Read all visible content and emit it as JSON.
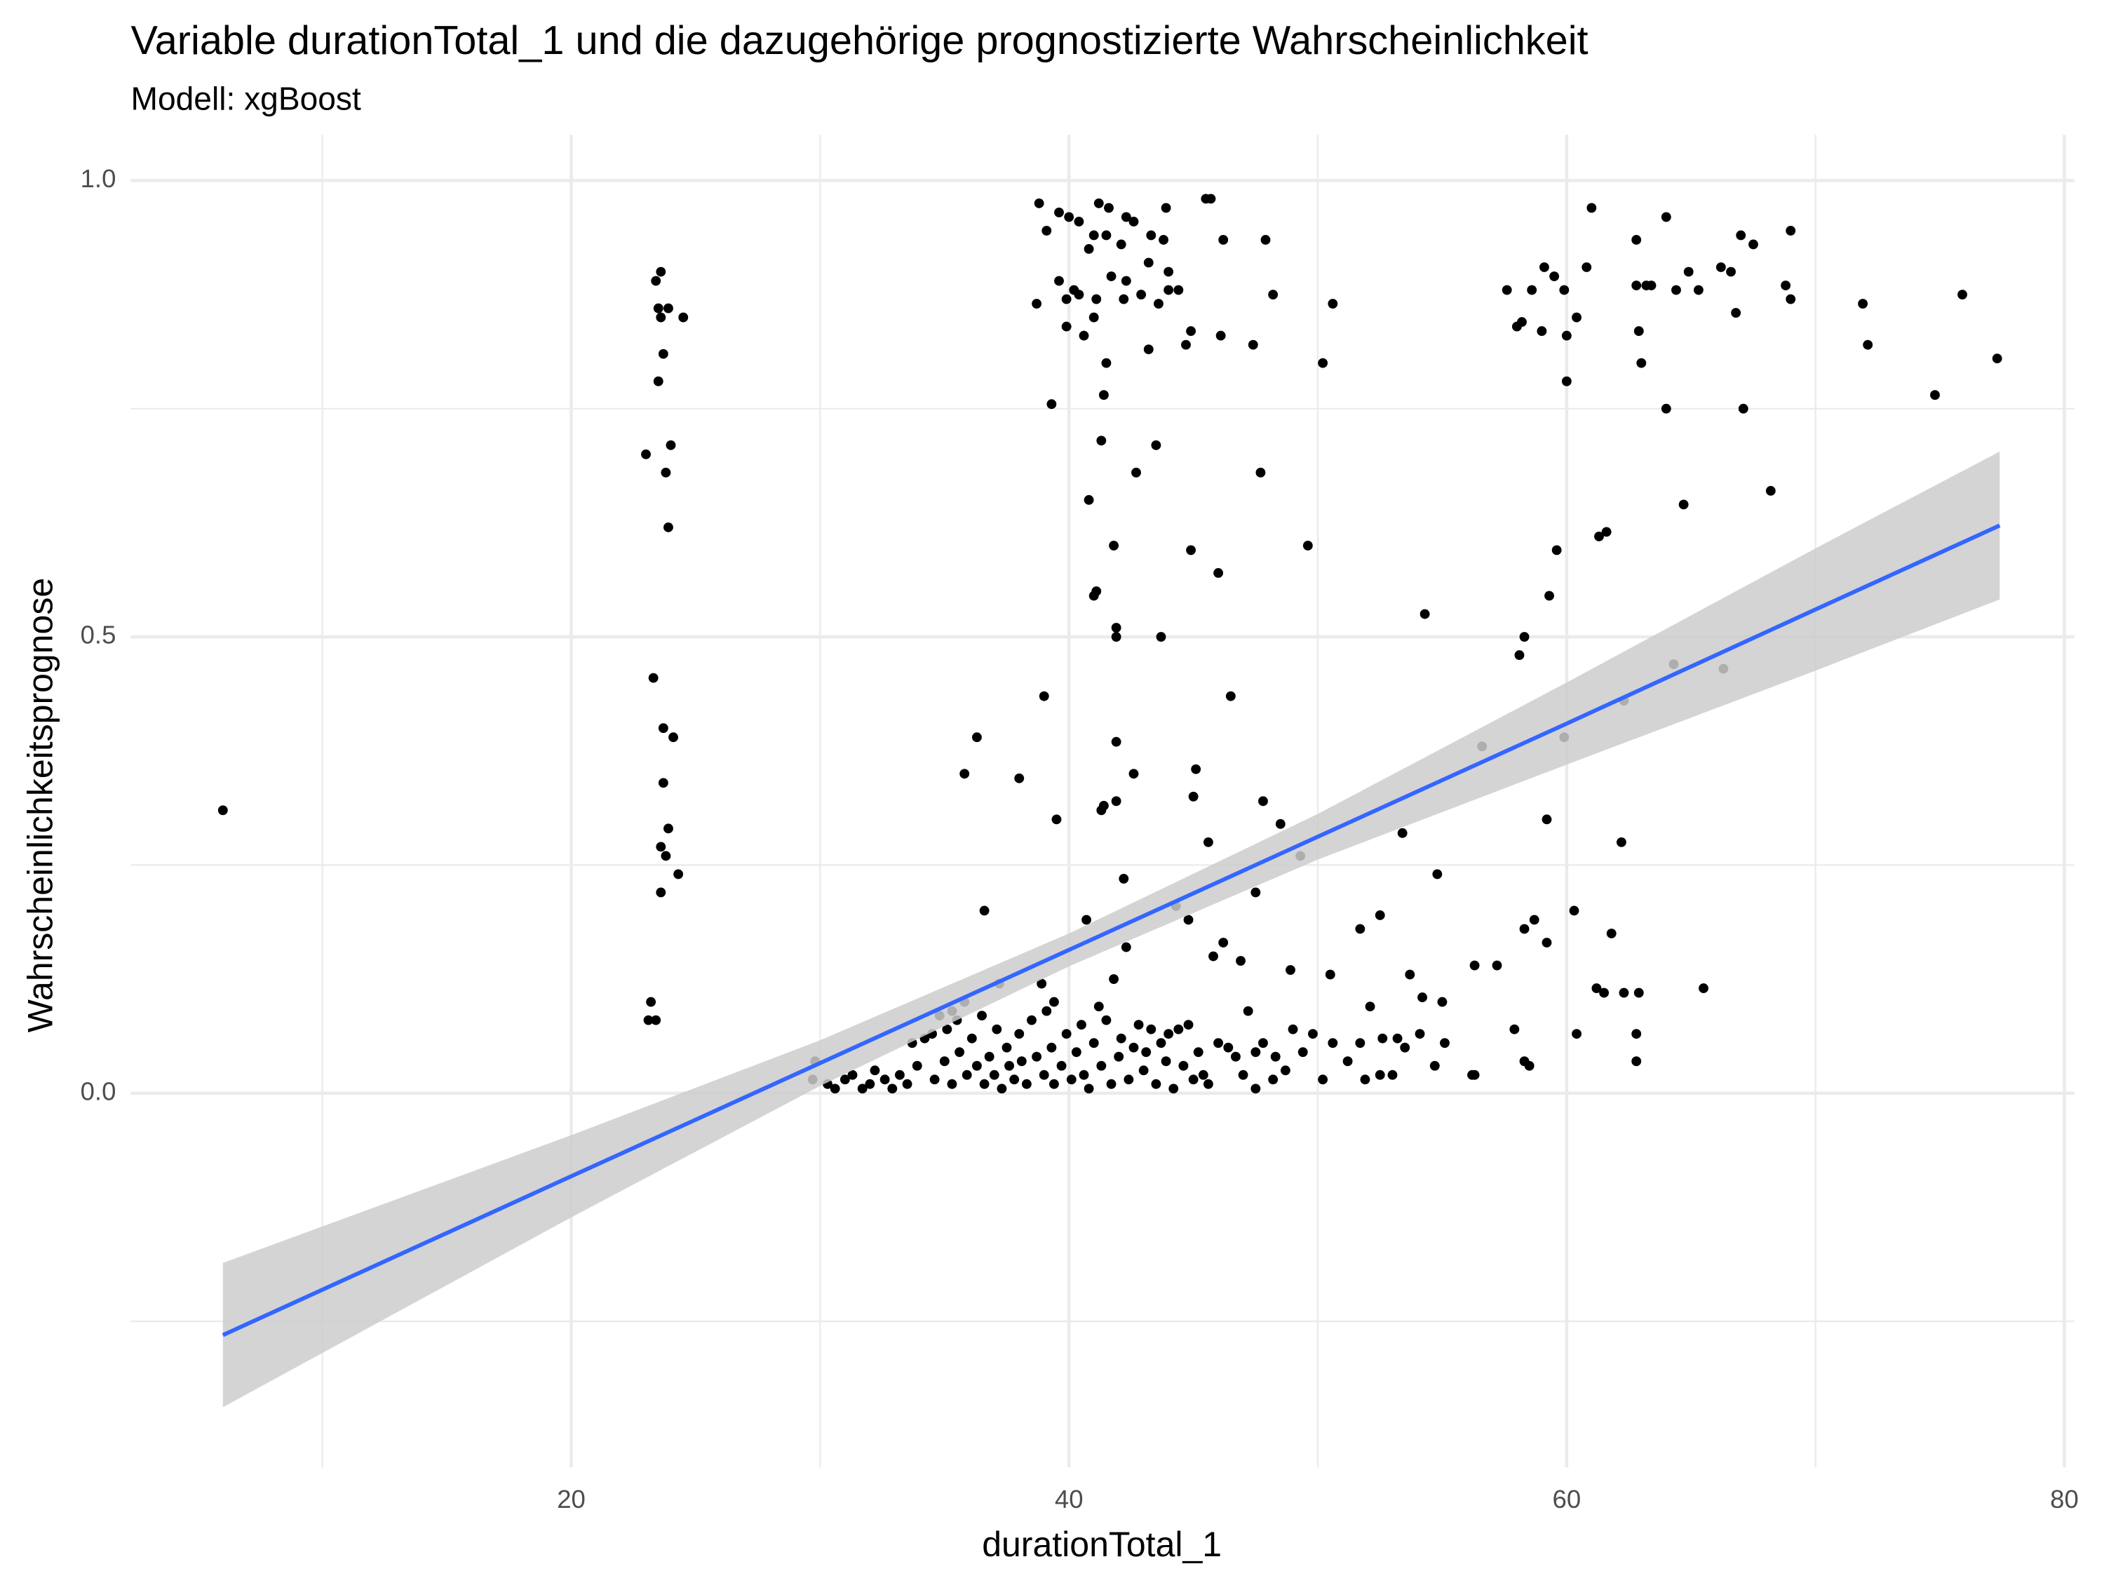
{
  "chart_data": {
    "type": "scatter",
    "title": "Variable durationTotal_1 und die dazugehörige prognostizierte Wahrscheinlichkeit",
    "subtitle": "Modell: xgBoost",
    "x_label": "durationTotal_1",
    "y_label": "Wahrscheinlichkeitsprognose",
    "color": "#000000",
    "x": [
      6.0,
      23.4,
      23.6,
      23.5,
      23.9,
      24.5,
      23.6,
      23.7,
      23.5,
      23.0,
      24.0,
      23.8,
      23.9,
      23.3,
      23.7,
      24.1,
      23.7,
      23.9,
      23.6,
      23.8,
      24.3,
      23.6,
      23.2,
      23.1,
      23.4,
      38.8,
      39.6,
      40.0,
      40.4,
      41.2,
      41.6,
      42.3,
      43.9,
      45.5,
      45.7,
      42.6,
      43.3,
      39.1,
      41.0,
      41.5,
      46.2,
      47.9,
      43.8,
      40.8,
      42.1,
      40.2,
      39.6,
      41.7,
      42.3,
      43.2,
      44.0,
      44.4,
      39.9,
      41.1,
      40.4,
      42.9,
      43.6,
      44.0,
      48.2,
      38.7,
      41.0,
      42.2,
      50.6,
      39.9,
      44.9,
      46.1,
      40.6,
      44.7,
      43.2,
      47.4,
      41.5,
      50.2,
      41.4,
      39.3,
      40.8,
      41.3,
      43.5,
      42.7,
      47.7,
      41.8,
      44.9,
      49.6,
      46.0,
      41.0,
      41.1,
      41.9,
      41.9,
      43.7,
      39.0,
      46.5,
      41.9,
      45.1,
      42.6,
      36.3,
      35.8,
      38.0,
      41.4,
      41.9,
      41.3,
      45.0,
      47.8,
      39.5,
      48.5,
      45.6,
      49.3,
      53.4,
      42.2,
      54.8,
      36.6,
      44.3,
      44.8,
      40.7,
      47.5,
      57.6,
      58.0,
      58.2,
      58.6,
      59.0,
      59.1,
      59.5,
      59.9,
      60.0,
      60.4,
      60.8,
      61.0,
      62.8,
      62.8,
      63.2,
      63.4,
      64.0,
      64.4,
      64.9,
      65.3,
      66.2,
      66.6,
      67.0,
      67.5,
      66.8,
      68.8,
      69.0,
      69.0,
      71.9,
      72.1,
      75.9,
      77.3,
      74.8,
      63.0,
      62.9,
      60.0,
      64.0,
      67.1,
      68.2,
      64.7,
      61.3,
      61.6,
      59.6,
      59.3,
      58.3,
      58.1,
      54.3,
      56.6,
      59.9,
      62.3,
      64.3,
      66.3,
      59.2,
      62.2,
      58.3,
      58.7,
      59.2,
      60.3,
      61.8,
      61.2,
      61.5,
      62.3,
      62.9,
      65.5,
      56.3,
      57.2,
      53.7,
      52.5,
      51.7,
      52.1,
      50.5,
      48.9,
      46.9,
      47.2,
      54.2,
      55.0,
      57.9,
      60.4,
      62.8,
      55.1,
      53.5,
      56.3,
      56.2,
      58.3,
      58.5,
      62.8,
      54.7,
      53.0,
      52.5,
      51.9,
      50.2,
      48.2,
      47.5,
      29.8,
      29.7,
      30.3,
      30.6,
      31.0,
      31.3,
      31.7,
      32.0,
      32.2,
      32.6,
      32.9,
      33.2,
      33.5,
      33.7,
      33.9,
      34.2,
      34.5,
      34.6,
      34.8,
      35.0,
      35.1,
      35.3,
      35.5,
      35.6,
      35.8,
      35.9,
      36.1,
      36.3,
      36.5,
      36.6,
      36.8,
      37.0,
      37.1,
      37.3,
      37.5,
      37.6,
      37.8,
      38.0,
      38.1,
      38.3,
      38.5,
      38.7,
      38.9,
      39.0,
      39.1,
      39.3,
      39.4,
      39.7,
      39.9,
      40.1,
      40.3,
      40.5,
      40.6,
      40.8,
      41.0,
      41.2,
      41.3,
      41.5,
      41.7,
      41.8,
      42.0,
      42.1,
      42.3,
      42.4,
      42.6,
      42.8,
      43.0,
      43.1,
      43.3,
      43.5,
      43.7,
      43.9,
      44.0,
      44.2,
      44.4,
      44.6,
      44.8,
      45.0,
      45.2,
      45.4,
      45.6,
      45.8,
      46.0,
      46.2,
      46.4,
      46.7,
      47.0,
      47.5,
      47.8,
      48.3,
      48.7,
      49.0,
      49.4,
      49.8,
      50.6,
      51.2,
      51.7,
      52.6,
      53.2,
      54.1,
      37.2,
      35.3,
      39.4
    ],
    "values": [
      0.31,
      0.89,
      0.9,
      0.86,
      0.86,
      0.85,
      0.85,
      0.81,
      0.78,
      0.7,
      0.71,
      0.68,
      0.62,
      0.455,
      0.4,
      0.39,
      0.34,
      0.29,
      0.27,
      0.26,
      0.24,
      0.22,
      0.1,
      0.08,
      0.08,
      0.975,
      0.965,
      0.96,
      0.955,
      0.975,
      0.97,
      0.96,
      0.97,
      0.98,
      0.98,
      0.955,
      0.94,
      0.945,
      0.94,
      0.94,
      0.935,
      0.935,
      0.935,
      0.925,
      0.93,
      0.88,
      0.89,
      0.895,
      0.89,
      0.91,
      0.9,
      0.88,
      0.87,
      0.87,
      0.875,
      0.875,
      0.865,
      0.88,
      0.875,
      0.865,
      0.85,
      0.87,
      0.865,
      0.84,
      0.835,
      0.83,
      0.83,
      0.82,
      0.815,
      0.82,
      0.8,
      0.8,
      0.765,
      0.755,
      0.65,
      0.715,
      0.71,
      0.68,
      0.68,
      0.6,
      0.595,
      0.6,
      0.57,
      0.545,
      0.55,
      0.51,
      0.5,
      0.5,
      0.435,
      0.435,
      0.385,
      0.355,
      0.35,
      0.39,
      0.35,
      0.345,
      0.315,
      0.32,
      0.31,
      0.325,
      0.32,
      0.3,
      0.295,
      0.275,
      0.26,
      0.285,
      0.235,
      0.24,
      0.2,
      0.205,
      0.19,
      0.19,
      0.22,
      0.88,
      0.84,
      0.845,
      0.88,
      0.835,
      0.905,
      0.895,
      0.88,
      0.83,
      0.85,
      0.905,
      0.97,
      0.935,
      0.885,
      0.885,
      0.885,
      0.96,
      0.88,
      0.9,
      0.88,
      0.905,
      0.9,
      0.94,
      0.93,
      0.855,
      0.885,
      0.945,
      0.87,
      0.865,
      0.82,
      0.875,
      0.805,
      0.765,
      0.8,
      0.835,
      0.78,
      0.75,
      0.75,
      0.66,
      0.645,
      0.61,
      0.615,
      0.595,
      0.545,
      0.5,
      0.48,
      0.525,
      0.38,
      0.39,
      0.43,
      0.47,
      0.465,
      0.3,
      0.275,
      0.18,
      0.19,
      0.165,
      0.2,
      0.175,
      0.115,
      0.11,
      0.11,
      0.11,
      0.115,
      0.14,
      0.14,
      0.13,
      0.195,
      0.18,
      0.095,
      0.13,
      0.135,
      0.145,
      0.09,
      0.105,
      0.1,
      0.07,
      0.065,
      0.065,
      0.055,
      0.05,
      0.02,
      0.02,
      0.035,
      0.03,
      0.035,
      0.03,
      0.02,
      0.02,
      0.015,
      0.015,
      0.015,
      0.005,
      0.035,
      0.015,
      0.01,
      0.005,
      0.015,
      0.02,
      0.005,
      0.01,
      0.025,
      0.015,
      0.005,
      0.02,
      0.01,
      0.055,
      0.03,
      0.06,
      0.065,
      0.015,
      0.085,
      0.035,
      0.07,
      0.01,
      0.08,
      0.045,
      0.1,
      0.02,
      0.06,
      0.03,
      0.085,
      0.01,
      0.04,
      0.02,
      0.07,
      0.005,
      0.05,
      0.03,
      0.015,
      0.065,
      0.035,
      0.01,
      0.08,
      0.04,
      0.12,
      0.02,
      0.09,
      0.05,
      0.01,
      0.03,
      0.065,
      0.015,
      0.045,
      0.075,
      0.02,
      0.005,
      0.055,
      0.095,
      0.03,
      0.08,
      0.01,
      0.125,
      0.04,
      0.06,
      0.16,
      0.015,
      0.05,
      0.075,
      0.025,
      0.045,
      0.07,
      0.01,
      0.055,
      0.035,
      0.065,
      0.005,
      0.07,
      0.03,
      0.075,
      0.015,
      0.045,
      0.02,
      0.01,
      0.15,
      0.055,
      0.165,
      0.05,
      0.04,
      0.02,
      0.045,
      0.055,
      0.04,
      0.025,
      0.07,
      0.045,
      0.065,
      0.055,
      0.035,
      0.055,
      0.06,
      0.06,
      0.065,
      0.12,
      0.09,
      0.1
    ],
    "trend": {
      "color": "#3366ff",
      "band_color": "#cccccc",
      "x": [
        6.0,
        20,
        30,
        40,
        50,
        60,
        70,
        77.4
      ],
      "values": [
        -0.265,
        -0.091,
        0.033,
        0.157,
        0.281,
        0.405,
        0.53,
        0.622
      ],
      "lower": [
        -0.344,
        -0.136,
        0.008,
        0.139,
        0.256,
        0.36,
        0.463,
        0.541
      ],
      "upper": [
        -0.186,
        -0.046,
        0.058,
        0.175,
        0.306,
        0.45,
        0.597,
        0.703
      ]
    },
    "xlim": [
      2.3,
      80.4
    ],
    "ylim": [
      -0.41,
      1.05
    ],
    "xticks": [
      20,
      40,
      60,
      80
    ],
    "yticks": [
      {
        "value": 0,
        "label": "0.0"
      },
      0.5,
      {
        "value": 1,
        "label": "1.0"
      }
    ],
    "x_minor_ticks": [
      10,
      30,
      50,
      70
    ],
    "y_minor_ticks": [
      -0.25,
      0.25,
      0.75
    ],
    "grid": true
  }
}
